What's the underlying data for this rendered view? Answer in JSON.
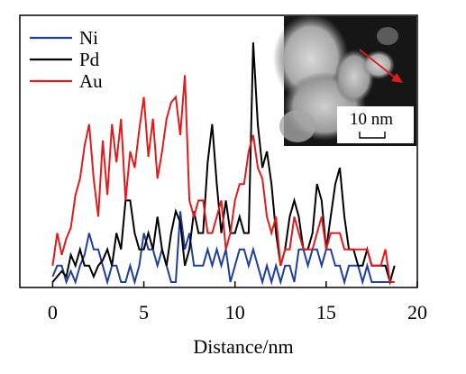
{
  "chart_data": {
    "type": "line",
    "title": "",
    "xlabel": "Distance/nm",
    "ylabel": "",
    "xlim": [
      -1.8,
      20
    ],
    "ylim": [
      0,
      100
    ],
    "xticks": [
      0,
      5,
      10,
      15,
      20
    ],
    "xtick_labels": [
      "0",
      "5",
      "10",
      "15",
      "20"
    ],
    "grid": false,
    "legend_position": "top-left",
    "series": [
      {
        "name": "Ni",
        "color": "#1f3f9f",
        "x": [
          0,
          0.25,
          0.5,
          0.75,
          1,
          1.25,
          1.5,
          1.75,
          2,
          2.25,
          2.5,
          2.75,
          3,
          3.25,
          3.5,
          3.75,
          4,
          4.25,
          4.5,
          4.75,
          5,
          5.25,
          5.5,
          5.75,
          6,
          6.25,
          6.5,
          6.75,
          7,
          7.25,
          7.5,
          7.75,
          8,
          8.25,
          8.5,
          8.75,
          9,
          9.25,
          9.5,
          9.75,
          10,
          10.25,
          10.5,
          10.75,
          11,
          11.25,
          11.5,
          11.75,
          12,
          12.25,
          12.5,
          12.75,
          13,
          13.25,
          13.5,
          13.75,
          14,
          14.25,
          14.5,
          14.75,
          15,
          15.25,
          15.5,
          15.75,
          16,
          16.25,
          16.5,
          16.75,
          17,
          17.25,
          17.5,
          17.75,
          18,
          18.25,
          18.5,
          18.75
        ],
        "values": [
          4,
          8,
          8,
          2,
          6,
          2,
          8,
          12,
          20,
          14,
          14,
          8,
          2,
          8,
          8,
          2,
          2,
          8,
          2,
          8,
          20,
          14,
          14,
          8,
          14,
          8,
          2,
          2,
          28,
          14,
          20,
          8,
          8,
          8,
          14,
          8,
          14,
          8,
          14,
          2,
          8,
          14,
          14,
          8,
          14,
          8,
          2,
          8,
          2,
          8,
          2,
          8,
          8,
          2,
          14,
          14,
          8,
          14,
          14,
          8,
          14,
          14,
          8,
          8,
          2,
          8,
          8,
          8,
          2,
          8,
          2,
          2,
          2,
          2,
          2,
          2
        ]
      },
      {
        "name": "Pd",
        "color": "#000000",
        "x": [
          0,
          0.25,
          0.5,
          0.75,
          1,
          1.25,
          1.5,
          1.75,
          2,
          2.25,
          2.5,
          2.75,
          3,
          3.25,
          3.5,
          3.75,
          4,
          4.25,
          4.5,
          4.75,
          5,
          5.25,
          5.5,
          5.75,
          6,
          6.25,
          6.5,
          6.75,
          7,
          7.25,
          7.5,
          7.75,
          8,
          8.25,
          8.5,
          8.75,
          9,
          9.25,
          9.5,
          9.75,
          10,
          10.25,
          10.5,
          10.75,
          11,
          11.25,
          11.5,
          11.75,
          12,
          12.25,
          12.5,
          12.75,
          13,
          13.25,
          13.5,
          13.75,
          14,
          14.25,
          14.5,
          14.75,
          15,
          15.25,
          15.5,
          15.75,
          16,
          16.25,
          16.5,
          16.75,
          17,
          17.25,
          17.5,
          17.75,
          18,
          18.25,
          18.5,
          18.75
        ],
        "values": [
          2,
          4,
          6,
          4,
          12,
          8,
          14,
          8,
          8,
          4,
          8,
          10,
          14,
          8,
          20,
          14,
          32,
          32,
          20,
          14,
          14,
          20,
          14,
          26,
          14,
          8,
          20,
          28,
          24,
          8,
          14,
          28,
          20,
          20,
          46,
          60,
          38,
          20,
          32,
          20,
          20,
          26,
          20,
          20,
          90,
          60,
          44,
          50,
          38,
          20,
          8,
          14,
          26,
          32,
          26,
          14,
          14,
          20,
          38,
          32,
          14,
          26,
          38,
          44,
          26,
          14,
          14,
          8,
          8,
          14,
          8,
          8,
          8,
          8,
          2,
          8
        ]
      },
      {
        "name": "Au",
        "color": "#e01b1b",
        "x": [
          0,
          0.25,
          0.5,
          0.75,
          1,
          1.25,
          1.5,
          1.75,
          2,
          2.25,
          2.5,
          2.75,
          3,
          3.25,
          3.5,
          3.75,
          4,
          4.25,
          4.5,
          4.75,
          5,
          5.25,
          5.5,
          5.75,
          6,
          6.25,
          6.5,
          6.75,
          7,
          7.25,
          7.5,
          7.75,
          8,
          8.25,
          8.5,
          8.75,
          9,
          9.25,
          9.5,
          9.75,
          10,
          10.25,
          10.5,
          10.75,
          11,
          11.25,
          11.5,
          11.75,
          12,
          12.25,
          12.5,
          12.75,
          13,
          13.25,
          13.5,
          13.75,
          14,
          14.25,
          14.5,
          14.75,
          15,
          15.25,
          15.5,
          15.75,
          16,
          16.25,
          16.5,
          16.75,
          17,
          17.25,
          17.5,
          17.75,
          18,
          18.25,
          18.5,
          18.75
        ],
        "values": [
          8,
          20,
          12,
          18,
          22,
          34,
          40,
          52,
          60,
          40,
          26,
          54,
          34,
          60,
          46,
          62,
          32,
          50,
          44,
          58,
          70,
          48,
          62,
          40,
          50,
          62,
          68,
          70,
          56,
          78,
          32,
          26,
          32,
          32,
          20,
          20,
          26,
          32,
          14,
          20,
          32,
          38,
          38,
          50,
          56,
          44,
          40,
          26,
          20,
          26,
          8,
          14,
          14,
          26,
          20,
          14,
          14,
          14,
          20,
          26,
          14,
          20,
          20,
          20,
          14,
          14,
          14,
          14,
          14,
          14,
          8,
          8,
          8,
          14,
          2,
          2
        ]
      }
    ],
    "inset": {
      "scalebar_label": "10 nm",
      "arrow_color": "#e01b1b"
    }
  }
}
